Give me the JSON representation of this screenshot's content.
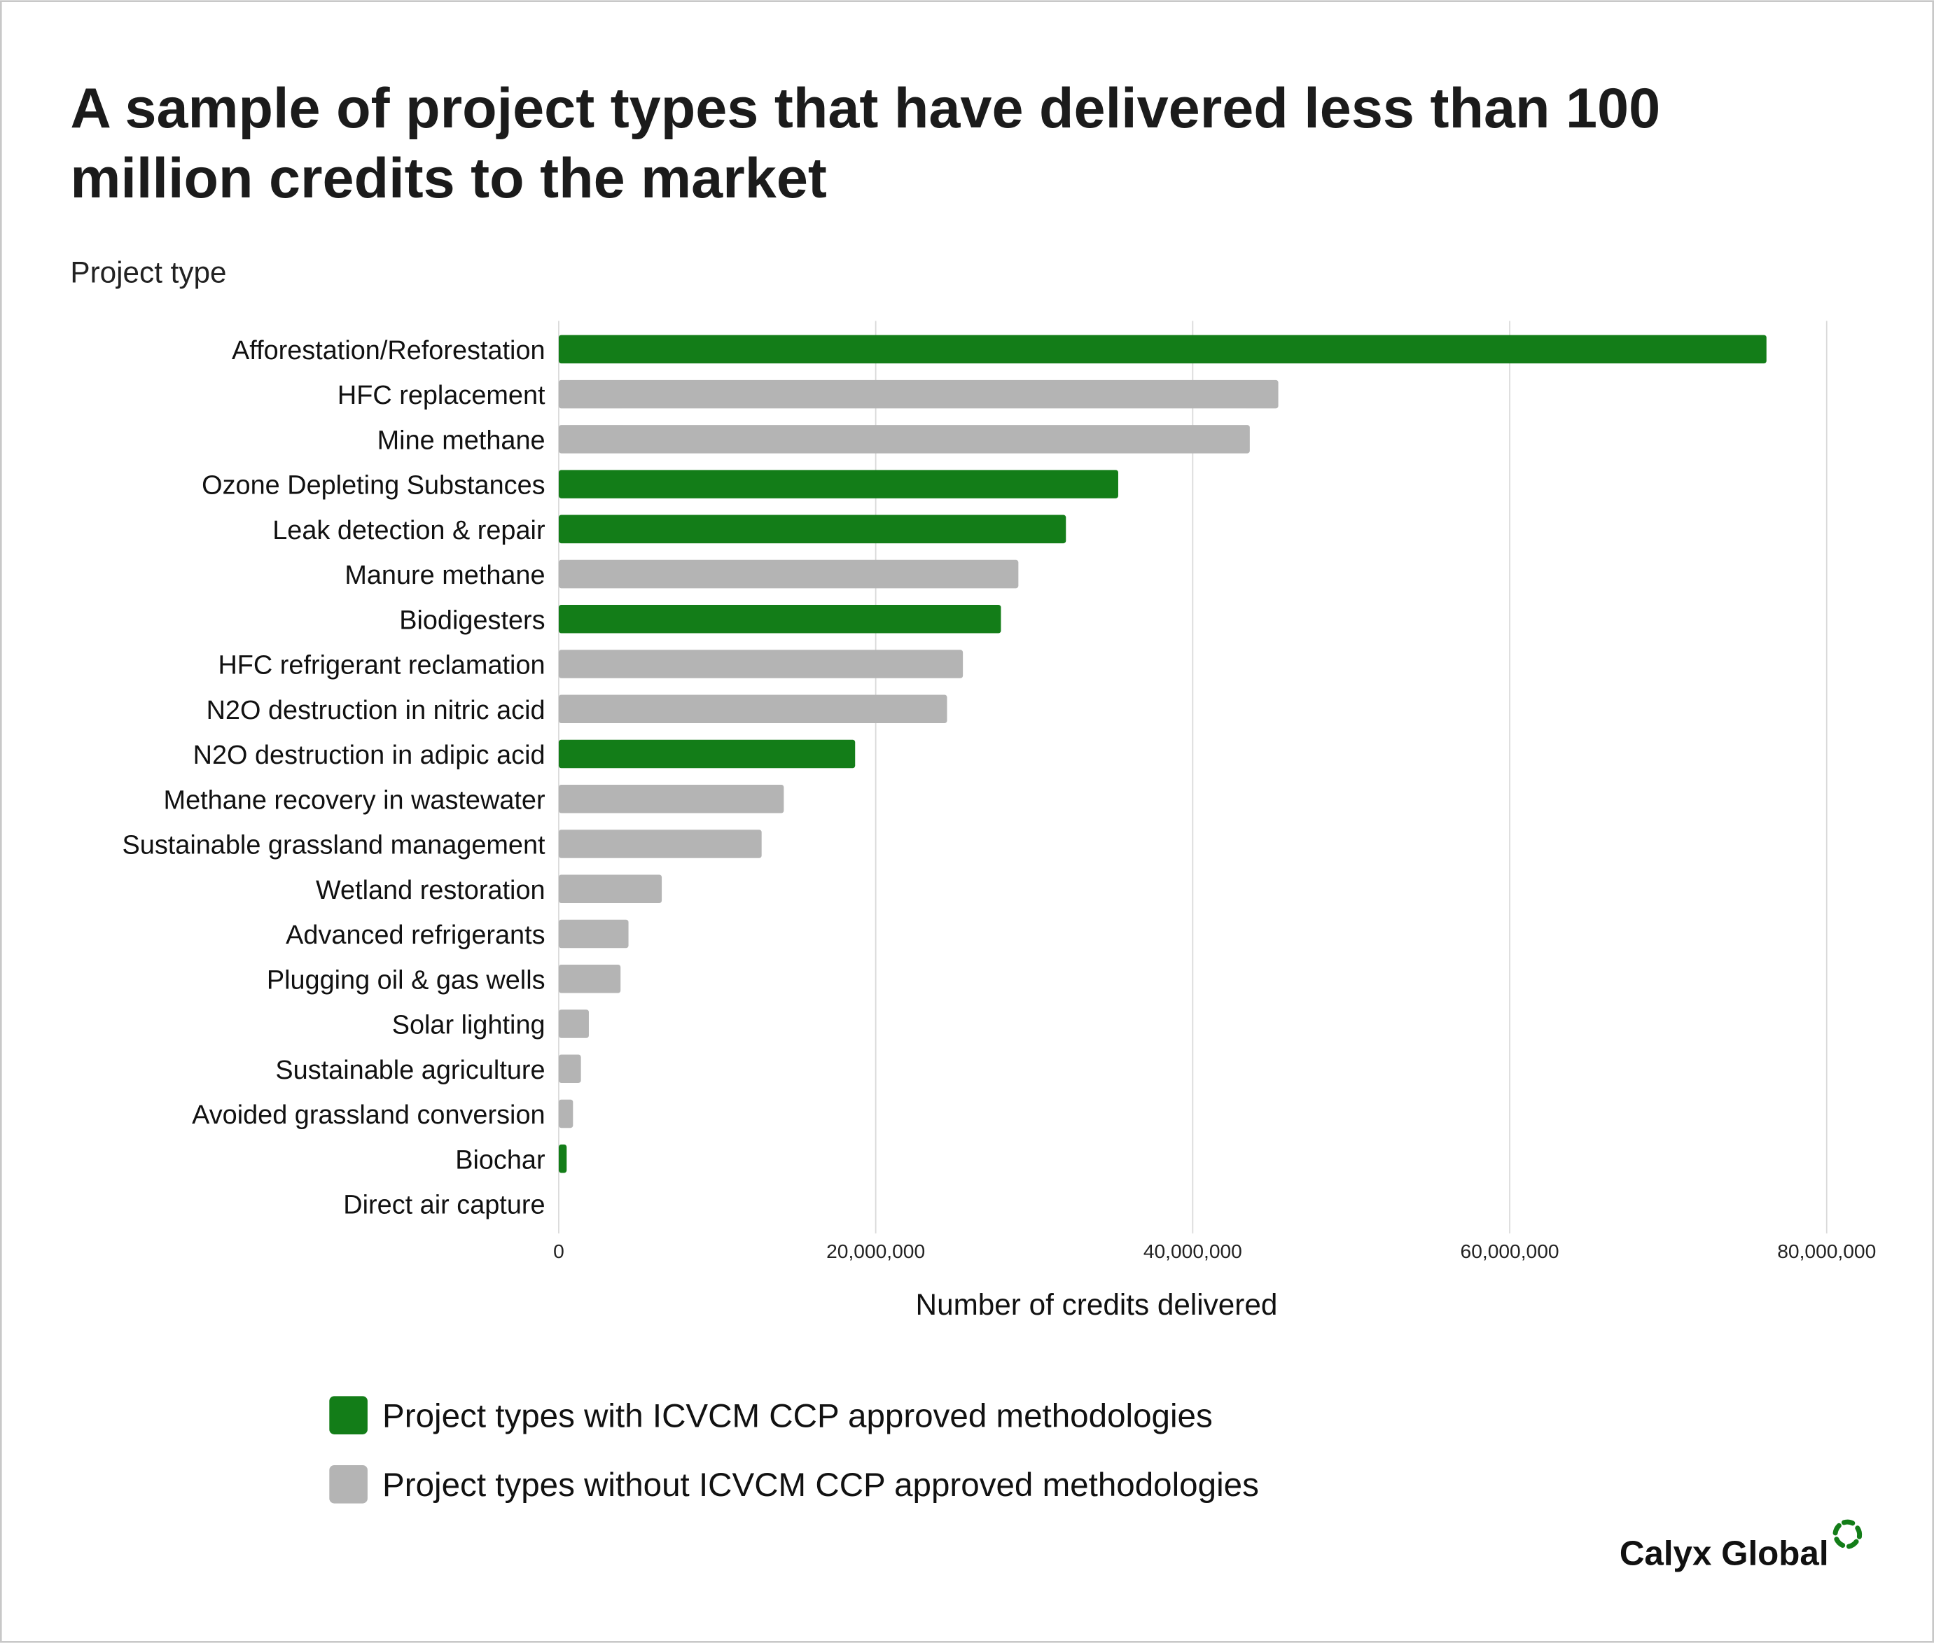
{
  "chart_data": {
    "type": "bar",
    "orientation": "horizontal",
    "title_lines": [
      "A sample of project types that have delivered less than 100",
      "million credits to the market"
    ],
    "ylabel": "Project type",
    "xlabel": "Number of credits delivered",
    "xlim": [
      0,
      80000000
    ],
    "xticks": [
      0,
      20000000,
      40000000,
      60000000,
      80000000
    ],
    "xtick_labels": [
      "0",
      "20,000,000",
      "40,000,000",
      "60,000,000",
      "80,000,000"
    ],
    "grid": true,
    "categories": [
      "Afforestation/Reforestation",
      "HFC replacement",
      "Mine methane",
      "Ozone Depleting Substances",
      "Leak detection & repair",
      "Manure methane",
      "Biodigesters",
      "HFC refrigerant reclamation",
      "N2O destruction in nitric acid",
      "N2O destruction in adipic acid",
      "Methane recovery in wastewater",
      "Sustainable grassland management",
      "Wetland restoration",
      "Advanced refrigerants",
      "Plugging oil & gas wells",
      "Solar lighting",
      "Sustainable agriculture",
      "Avoided grassland conversion",
      "Biochar",
      "Direct air capture"
    ],
    "values": [
      76200000,
      45400000,
      43600000,
      35300000,
      32000000,
      29000000,
      27900000,
      25500000,
      24500000,
      18700000,
      14200000,
      12800000,
      6500000,
      4400000,
      3900000,
      1900000,
      1400000,
      900000,
      500000,
      0
    ],
    "approved": [
      true,
      false,
      false,
      true,
      true,
      false,
      true,
      false,
      false,
      true,
      false,
      false,
      false,
      false,
      false,
      false,
      false,
      false,
      true,
      false
    ],
    "legend": [
      {
        "label": "Project types with ICVCM CCP approved methodologies",
        "color": "#137d18"
      },
      {
        "label": "Project types without ICVCM CCP approved methodologies",
        "color": "#b4b4b4"
      }
    ],
    "legend_placement": "bottom-left"
  },
  "colors": {
    "approved": "#137d18",
    "not_approved": "#b4b4b4"
  },
  "brand": {
    "name": "Calyx Global"
  }
}
